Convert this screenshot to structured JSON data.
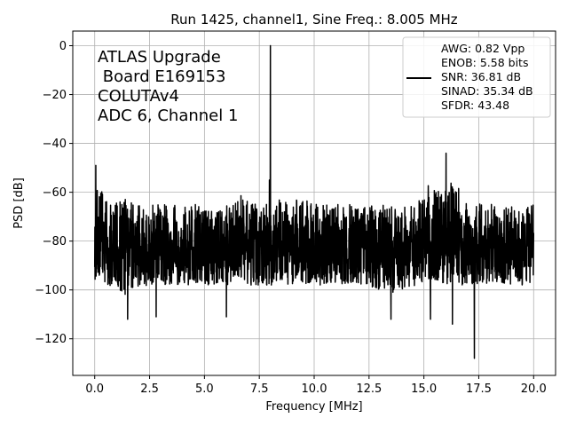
{
  "chart_data": {
    "type": "line",
    "title": "Run 1425, channel1, Sine Freq.: 8.005 MHz",
    "xlabel": "Frequency [MHz]",
    "ylabel": "PSD [dB]",
    "xlim": [
      -1.0,
      21.0
    ],
    "ylim": [
      -135,
      6
    ],
    "xticks": [
      0.0,
      2.5,
      5.0,
      7.5,
      10.0,
      12.5,
      15.0,
      17.5,
      20.0
    ],
    "xtick_labels": [
      "0.0",
      "2.5",
      "5.0",
      "7.5",
      "10.0",
      "12.5",
      "15.0",
      "17.5",
      "20.0"
    ],
    "yticks": [
      0,
      -20,
      -40,
      -60,
      -80,
      -100,
      -120
    ],
    "ytick_labels": [
      "0",
      "−20",
      "−40",
      "−60",
      "−80",
      "−100",
      "−120"
    ],
    "grid": true,
    "line_color": "#000000",
    "annotation": [
      "ATLAS Upgrade",
      " Board E169153",
      "COLUTAv4",
      "ADC 6, Channel 1"
    ],
    "legend": {
      "placement": "top-right",
      "lines": [
        "AWG: 0.82 Vpp",
        "ENOB: 5.58 bits",
        "SNR: 36.81 dB",
        "SINAD: 35.34 dB",
        "SFDR: 43.48"
      ]
    },
    "series": [
      {
        "x_range": [
          0.0,
          20.0
        ],
        "noise_floor": -83,
        "noise_band": [
          -98,
          -65
        ],
        "peaks": [
          {
            "x": 0.05,
            "y": -49
          },
          {
            "x": 8.005,
            "y": 0
          },
          {
            "x": 7.96,
            "y": -55
          },
          {
            "x": 16.01,
            "y": -44
          },
          {
            "x": 17.3,
            "y": -128
          },
          {
            "x": 1.5,
            "y": -112
          },
          {
            "x": 2.8,
            "y": -111
          },
          {
            "x": 6.0,
            "y": -111
          },
          {
            "x": 13.5,
            "y": -112
          },
          {
            "x": 15.3,
            "y": -112
          },
          {
            "x": 16.3,
            "y": -114
          }
        ]
      }
    ]
  }
}
